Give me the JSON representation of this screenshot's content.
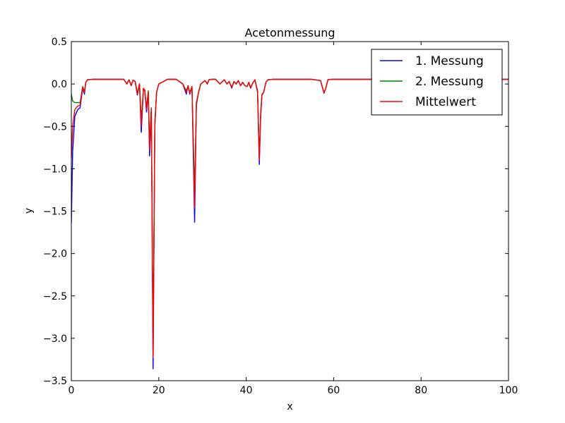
{
  "chart_data": {
    "type": "line",
    "title": "Acetonmessung",
    "xlabel": "x",
    "ylabel": "y",
    "xlim": [
      0,
      100
    ],
    "ylim": [
      -3.5,
      0.5
    ],
    "xticks": [
      0,
      20,
      40,
      60,
      80,
      100
    ],
    "yticks": [
      -3.5,
      -3.0,
      -2.5,
      -2.0,
      -1.5,
      -1.0,
      -0.5,
      0.0,
      0.5
    ],
    "xtick_labels": [
      "0",
      "20",
      "40",
      "60",
      "80",
      "100"
    ],
    "ytick_labels": [
      "−3.5",
      "−3.0",
      "−2.5",
      "−2.0",
      "−1.5",
      "−1.0",
      "−0.5",
      "0.0",
      "0.5"
    ],
    "grid": false,
    "legend_position": "top-right",
    "series": [
      {
        "name": "1. Messung",
        "color": "#0000ff",
        "x": [
          0,
          0.3,
          0.8,
          1.5,
          2,
          2.6,
          3,
          3.3,
          3.7,
          5,
          8,
          10,
          12,
          12.7,
          13.2,
          13.7,
          14.1,
          14.6,
          15.1,
          15.6,
          16,
          16.5,
          16.8,
          17.2,
          17.6,
          17.9,
          18.3,
          18.7,
          19.1,
          19.5,
          20,
          22,
          24,
          25.5,
          26.3,
          26.7,
          27.1,
          27.6,
          28.2,
          28.6,
          29.1,
          29.6,
          30.1,
          30.6,
          31.1,
          31.5,
          32,
          33,
          34,
          35,
          35.6,
          36.1,
          36.7,
          37.2,
          37.7,
          38.2,
          38.7,
          39.2,
          39.7,
          40.2,
          40.6,
          41,
          41.5,
          42,
          42.6,
          43,
          43.3,
          43.6,
          44,
          44.5,
          45,
          46,
          50,
          55,
          57,
          57.8,
          58.2,
          58.7,
          59.5,
          60,
          65,
          70,
          75,
          80,
          90,
          100
        ],
        "y": [
          -1.65,
          -0.8,
          -0.38,
          -0.3,
          -0.28,
          -0.05,
          -0.12,
          0.02,
          0.05,
          0.055,
          0.055,
          0.055,
          0.055,
          0.0,
          0.05,
          -0.02,
          0.045,
          0.03,
          -0.13,
          0.0,
          -0.57,
          -0.05,
          -0.08,
          -0.33,
          -0.1,
          -0.85,
          -0.3,
          -3.36,
          -0.5,
          -0.1,
          0.0,
          0.055,
          0.055,
          0.0,
          -0.12,
          -0.02,
          -0.12,
          -0.03,
          -1.63,
          -0.25,
          -0.1,
          0.0,
          0.02,
          0.04,
          0.0,
          0.05,
          0.055,
          0.055,
          0.0,
          0.05,
          0.0,
          0.03,
          -0.05,
          0.03,
          0.0,
          0.04,
          -0.02,
          0.02,
          -0.02,
          -0.03,
          0.02,
          -0.05,
          0.01,
          0.05,
          -0.1,
          -0.95,
          -0.4,
          -0.13,
          -0.1,
          0.02,
          0.05,
          0.055,
          0.055,
          0.055,
          0.04,
          -0.11,
          -0.05,
          0.05,
          0.055,
          0.055,
          0.055,
          0.055,
          0.055,
          0.055,
          0.055,
          0.055
        ]
      },
      {
        "name": "2. Messung",
        "color": "#008000",
        "x": [
          0,
          0.3,
          0.8,
          1.5,
          2,
          2.6,
          3,
          3.3,
          3.7,
          5,
          8,
          10,
          12,
          12.7,
          13.2,
          13.7,
          14.1,
          14.6,
          15.1,
          15.6,
          16,
          16.5,
          16.8,
          17.2,
          17.6,
          17.9,
          18.3,
          18.7,
          19.1,
          19.5,
          20,
          22,
          24,
          25.5,
          26.3,
          26.7,
          27.1,
          27.6,
          28.2,
          28.6,
          29.1,
          29.6,
          30.1,
          30.6,
          31.1,
          31.5,
          32,
          33,
          34,
          35,
          35.6,
          36.1,
          36.7,
          37.2,
          37.7,
          38.2,
          38.7,
          39.2,
          39.7,
          40.2,
          40.6,
          41,
          41.5,
          42,
          42.6,
          43,
          43.3,
          43.6,
          44,
          44.5,
          45,
          46,
          50,
          55,
          57,
          57.8,
          58.2,
          58.7,
          59.5,
          60,
          65,
          70,
          75,
          80,
          90,
          100
        ],
        "y": [
          -0.12,
          -0.2,
          -0.22,
          -0.22,
          -0.22,
          -0.03,
          -0.09,
          0.02,
          0.05,
          0.055,
          0.055,
          0.055,
          0.055,
          0.0,
          0.05,
          -0.02,
          0.045,
          0.03,
          -0.1,
          0.0,
          -0.42,
          -0.05,
          -0.07,
          -0.28,
          -0.08,
          -0.7,
          -0.28,
          -3.1,
          -0.45,
          -0.1,
          0.0,
          0.055,
          0.055,
          0.0,
          -0.08,
          -0.02,
          -0.1,
          -0.03,
          -1.28,
          -0.22,
          -0.1,
          0.0,
          0.02,
          0.04,
          0.0,
          0.05,
          0.055,
          0.055,
          0.0,
          0.05,
          0.0,
          0.03,
          -0.04,
          0.03,
          0.0,
          0.04,
          -0.02,
          0.02,
          -0.02,
          -0.03,
          0.02,
          -0.04,
          0.01,
          0.05,
          -0.08,
          -0.85,
          -0.35,
          -0.12,
          -0.1,
          0.02,
          0.05,
          0.055,
          0.055,
          0.055,
          0.04,
          -0.1,
          -0.05,
          0.05,
          0.055,
          0.055,
          0.055,
          0.055,
          0.055,
          0.055,
          0.055,
          0.055
        ]
      },
      {
        "name": "Mittelwert",
        "color": "#ff0000",
        "x": [
          0,
          0.3,
          0.8,
          1.5,
          2,
          2.6,
          3,
          3.3,
          3.7,
          5,
          8,
          10,
          12,
          12.7,
          13.2,
          13.7,
          14.1,
          14.6,
          15.1,
          15.6,
          16,
          16.5,
          16.8,
          17.2,
          17.6,
          17.9,
          18.3,
          18.7,
          19.1,
          19.5,
          20,
          22,
          24,
          25.5,
          26.3,
          26.7,
          27.1,
          27.6,
          28.2,
          28.6,
          29.1,
          29.6,
          30.1,
          30.6,
          31.1,
          31.5,
          32,
          33,
          34,
          35,
          35.6,
          36.1,
          36.7,
          37.2,
          37.7,
          38.2,
          38.7,
          39.2,
          39.7,
          40.2,
          40.6,
          41,
          41.5,
          42,
          42.6,
          43,
          43.3,
          43.6,
          44,
          44.5,
          45,
          46,
          50,
          55,
          57,
          57.8,
          58.2,
          58.7,
          59.5,
          60,
          65,
          70,
          75,
          80,
          90,
          100
        ],
        "y": [
          -0.88,
          -0.5,
          -0.3,
          -0.26,
          -0.25,
          -0.04,
          -0.1,
          0.02,
          0.05,
          0.055,
          0.055,
          0.055,
          0.055,
          0.0,
          0.05,
          -0.02,
          0.045,
          0.03,
          -0.12,
          0.0,
          -0.5,
          -0.05,
          -0.075,
          -0.3,
          -0.09,
          -0.78,
          -0.29,
          -3.23,
          -0.48,
          -0.1,
          0.0,
          0.055,
          0.055,
          0.0,
          -0.1,
          -0.02,
          -0.11,
          -0.03,
          -1.46,
          -0.23,
          -0.1,
          0.0,
          0.02,
          0.04,
          0.0,
          0.05,
          0.055,
          0.055,
          0.0,
          0.05,
          0.0,
          0.03,
          -0.045,
          0.03,
          0.0,
          0.04,
          -0.02,
          0.02,
          -0.02,
          -0.03,
          0.02,
          -0.045,
          0.01,
          0.05,
          -0.09,
          -0.9,
          -0.38,
          -0.125,
          -0.1,
          0.02,
          0.05,
          0.055,
          0.055,
          0.055,
          0.04,
          -0.105,
          -0.05,
          0.05,
          0.055,
          0.055,
          0.055,
          0.055,
          0.055,
          0.055,
          0.055,
          0.055
        ]
      }
    ]
  }
}
